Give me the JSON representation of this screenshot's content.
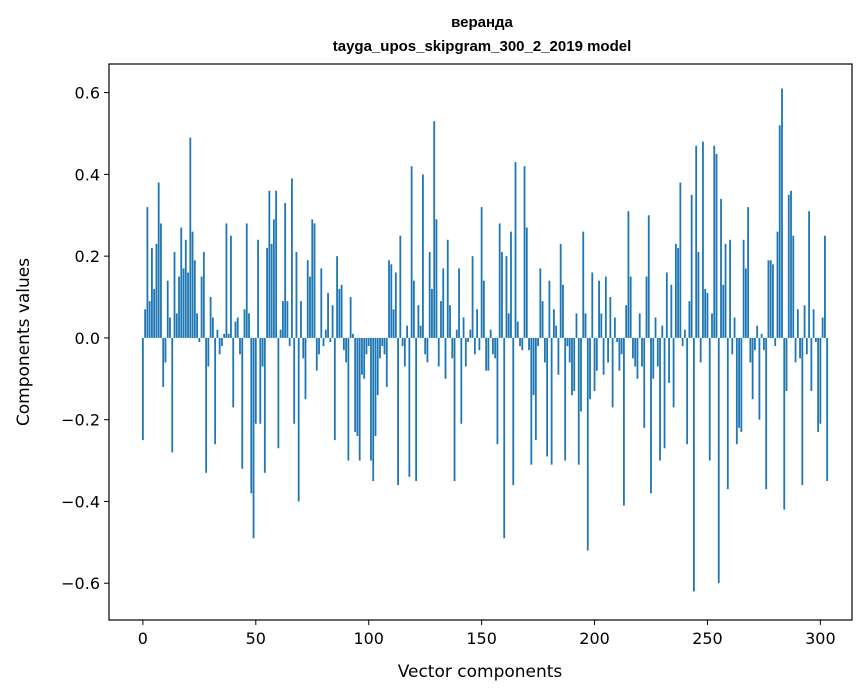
{
  "chart_data": {
    "type": "bar",
    "title": "веранда",
    "subtitle": "tayga_upos_skipgram_300_2_2019 model",
    "xlabel": "Vector components",
    "ylabel": "Components values",
    "xlim": [
      -15,
      314
    ],
    "ylim": [
      -0.69,
      0.67
    ],
    "xticks": [
      0,
      50,
      100,
      150,
      200,
      250,
      300
    ],
    "yticks": [
      -0.6,
      -0.4,
      -0.2,
      0.0,
      0.2,
      0.4,
      0.6
    ],
    "ytick_labels": [
      "−0.6",
      "−0.4",
      "−0.2",
      "0.0",
      "0.2",
      "0.4",
      "0.6"
    ],
    "grid": false,
    "bar_color": "#1f77b4",
    "values": [
      -0.25,
      0.07,
      0.32,
      0.09,
      0.22,
      0.12,
      0.23,
      0.38,
      0.28,
      -0.12,
      -0.06,
      0.14,
      0.05,
      -0.28,
      0.21,
      0.06,
      0.15,
      0.27,
      0.17,
      0.24,
      0.16,
      0.49,
      0.26,
      0.19,
      0.06,
      -0.01,
      0.15,
      0.21,
      -0.33,
      -0.07,
      0.1,
      0.05,
      -0.26,
      0.02,
      -0.04,
      -0.02,
      0.01,
      0.28,
      0.01,
      0.25,
      -0.17,
      0.04,
      0.05,
      -0.04,
      -0.32,
      0.07,
      0.28,
      0.06,
      -0.38,
      -0.49,
      -0.21,
      0.24,
      -0.21,
      -0.07,
      -0.33,
      0.22,
      0.36,
      0.23,
      0.29,
      0.36,
      -0.27,
      0.02,
      0.09,
      0.33,
      0.09,
      -0.02,
      0.39,
      -0.21,
      0.21,
      -0.4,
      0.09,
      -0.05,
      -0.15,
      0.19,
      0.15,
      0.29,
      0.28,
      -0.08,
      -0.04,
      0.17,
      -0.02,
      0.02,
      0.11,
      -0.01,
      0.08,
      -0.25,
      0.2,
      0.12,
      0.13,
      -0.03,
      -0.06,
      -0.3,
      0.1,
      0.01,
      -0.23,
      -0.24,
      -0.3,
      -0.09,
      -0.1,
      -0.04,
      -0.02,
      -0.3,
      -0.35,
      -0.24,
      -0.14,
      -0.05,
      -0.02,
      -0.04,
      -0.12,
      0.19,
      0.18,
      0.07,
      0.16,
      -0.36,
      0.25,
      -0.02,
      -0.07,
      0.03,
      -0.34,
      0.42,
      0.14,
      -0.35,
      0.08,
      0.03,
      0.4,
      -0.04,
      -0.06,
      0.21,
      0.12,
      0.53,
      0.29,
      -0.07,
      0.09,
      0.17,
      -0.1,
      0.24,
      0.08,
      -0.05,
      -0.35,
      0.02,
      0.17,
      -0.21,
      0.05,
      -0.07,
      -0.01,
      0.02,
      0.2,
      -0.04,
      0.07,
      -0.03,
      0.32,
      0.14,
      -0.08,
      -0.08,
      0.02,
      -0.04,
      -0.05,
      -0.26,
      0.28,
      0.21,
      -0.49,
      0.2,
      0.06,
      0.26,
      -0.36,
      0.43,
      0.04,
      -0.02,
      -0.03,
      0.42,
      0.27,
      -0.03,
      -0.31,
      -0.14,
      -0.25,
      -0.02,
      0.17,
      0.09,
      -0.06,
      -0.29,
      0.14,
      -0.31,
      0.07,
      0.03,
      -0.09,
      0.23,
      0.13,
      -0.3,
      -0.02,
      -0.06,
      -0.14,
      -0.13,
      0.06,
      -0.31,
      -0.18,
      0.26,
      0.06,
      -0.52,
      -0.15,
      0.16,
      -0.13,
      -0.08,
      0.14,
      0.06,
      -0.09,
      0.15,
      -0.06,
      0.1,
      -0.17,
      0.05,
      -0.01,
      -0.08,
      -0.04,
      -0.41,
      0.08,
      0.31,
      0.15,
      -0.05,
      -0.07,
      -0.1,
      0.06,
      -0.07,
      -0.22,
      0.15,
      0.3,
      -0.38,
      -0.1,
      0.05,
      -0.07,
      -0.3,
      0.03,
      -0.27,
      0.16,
      -0.11,
      0.13,
      -0.17,
      0.23,
      0.22,
      0.38,
      -0.02,
      0.02,
      -0.26,
      0.09,
      0.35,
      -0.62,
      0.47,
      0.21,
      -0.06,
      0.48,
      0.12,
      0.11,
      -0.3,
      0.06,
      0.47,
      0.45,
      -0.6,
      0.34,
      0.13,
      0.23,
      -0.37,
      0.24,
      -0.04,
      0.05,
      -0.26,
      -0.22,
      -0.23,
      0.24,
      0.17,
      0.32,
      -0.06,
      -0.15,
      -0.03,
      0.03,
      -0.2,
      0.01,
      -0.03,
      -0.37,
      0.19,
      0.19,
      0.18,
      -0.02,
      0.26,
      0.52,
      0.61,
      -0.42,
      -0.13,
      0.35,
      0.36,
      0.25,
      -0.06,
      0.07,
      -0.05,
      -0.36,
      0.08,
      -0.04,
      0.31,
      -0.13,
      0.07,
      -0.01,
      -0.23,
      -0.21,
      0.05,
      0.25,
      -0.35
    ]
  }
}
